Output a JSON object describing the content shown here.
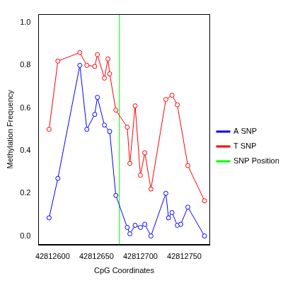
{
  "chart_data": {
    "type": "line",
    "x_label": "CpG Coordinates",
    "y_label": "Methylation Frequency",
    "xlim": [
      42812584,
      42812779
    ],
    "xticks": [
      42812600,
      42812650,
      42812700,
      42812750
    ],
    "ylim": [
      -0.04,
      1.04
    ],
    "yticks": [
      {
        "value": 0,
        "label": "0.0"
      },
      {
        "value": 0.2,
        "label": "0.2"
      },
      {
        "value": 0.4,
        "label": "0.4"
      },
      {
        "value": 0.6,
        "label": "0.6"
      },
      {
        "value": 0.8,
        "label": "0.8"
      },
      {
        "value": 1,
        "label": "1.0"
      }
    ],
    "grid": false,
    "legend": "right",
    "series": [
      {
        "name": "A SNP",
        "color": "#0000ff",
        "marker": "circle",
        "line_style": "solid",
        "x": [
          42812596,
          42812606,
          42812631,
          42812639,
          42812648,
          42812651,
          42812659,
          42812665,
          42812672,
          42812685,
          42812688,
          42812694,
          42812700,
          42812705,
          42812712,
          42812729,
          42812732,
          42812736,
          42812742,
          42812746,
          42812754,
          42812773
        ],
        "values": [
          0.085,
          0.27,
          0.8,
          0.5,
          0.57,
          0.65,
          0.52,
          0.49,
          0.19,
          0.04,
          0.01,
          0.05,
          0.04,
          0.055,
          0.0,
          0.2,
          0.085,
          0.11,
          0.05,
          0.055,
          0.135,
          0.0
        ]
      },
      {
        "name": "T SNP",
        "color": "#ff0000",
        "marker": "circle",
        "line_style": "solid",
        "x": [
          42812596,
          42812606,
          42812631,
          42812639,
          42812648,
          42812651,
          42812659,
          42812663,
          42812665,
          42812672,
          42812685,
          42812688,
          42812694,
          42812700,
          42812705,
          42812712,
          42812729,
          42812736,
          42812742,
          42812754,
          42812773
        ],
        "values": [
          0.5,
          0.82,
          0.86,
          0.8,
          0.795,
          0.85,
          0.74,
          0.83,
          0.76,
          0.59,
          0.51,
          0.34,
          0.61,
          0.285,
          0.39,
          0.22,
          0.64,
          0.66,
          0.615,
          0.33,
          0.165
        ]
      },
      {
        "name": "SNP Position",
        "color": "#00ff00",
        "marker": "none",
        "line_style": "solid",
        "x": [
          42812676,
          42812676
        ],
        "values": [
          -0.04,
          1.04
        ]
      }
    ]
  }
}
